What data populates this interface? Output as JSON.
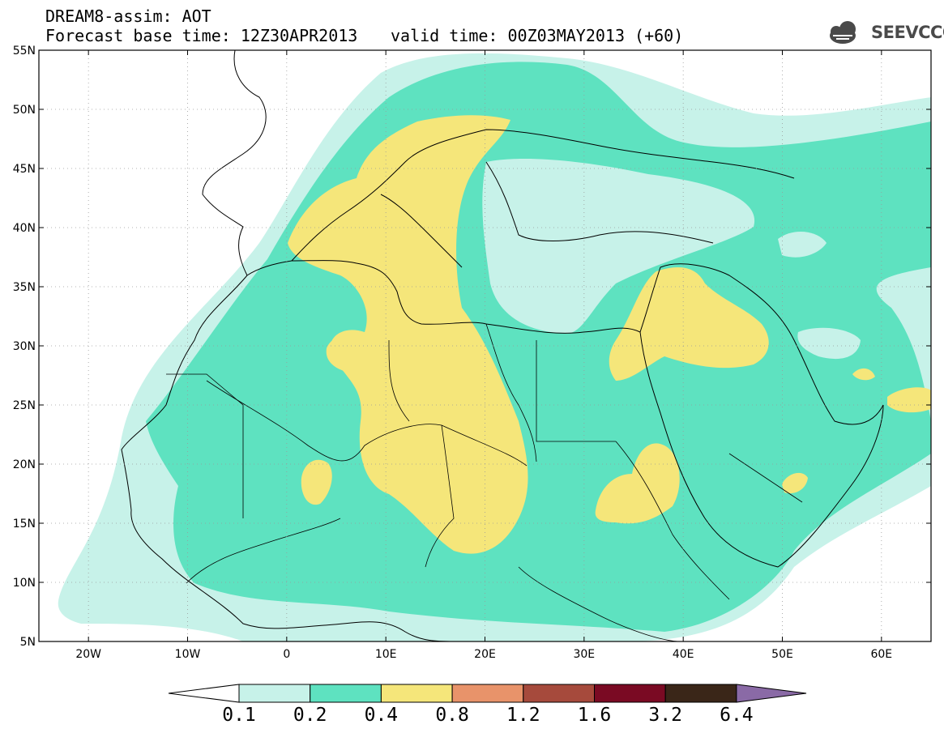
{
  "header": {
    "line1": "DREAM8-assim: AOT",
    "line2": "Forecast base time: 12Z30APR2013",
    "line3": "valid time: 00Z03MAY2013 (+60)"
  },
  "logo": {
    "text": "SEEVCCC",
    "icon": "cloud-icon"
  },
  "map": {
    "lat_labels": [
      "55N",
      "50N",
      "45N",
      "40N",
      "35N",
      "30N",
      "25N",
      "20N",
      "15N",
      "10N",
      "5N"
    ],
    "lon_labels": [
      "20W",
      "10W",
      "0",
      "10E",
      "20E",
      "30E",
      "40E",
      "50E",
      "60E"
    ],
    "lat_range": [
      5,
      55
    ],
    "lon_range": [
      -25,
      65
    ],
    "grid": "dotted"
  },
  "colorbar": {
    "levels": [
      "0.1",
      "0.2",
      "0.4",
      "0.8",
      "1.2",
      "1.6",
      "3.2",
      "6.4"
    ],
    "colors": [
      "#ffffff",
      "#c7f2e9",
      "#5ee2c0",
      "#f5e67a",
      "#e8936a",
      "#a64a3c",
      "#7a0a23",
      "#3a2618",
      "#8a6aa6"
    ]
  },
  "colors": {
    "low": "#c7f2e9",
    "mid": "#5ee2c0",
    "high": "#f5e67a"
  }
}
